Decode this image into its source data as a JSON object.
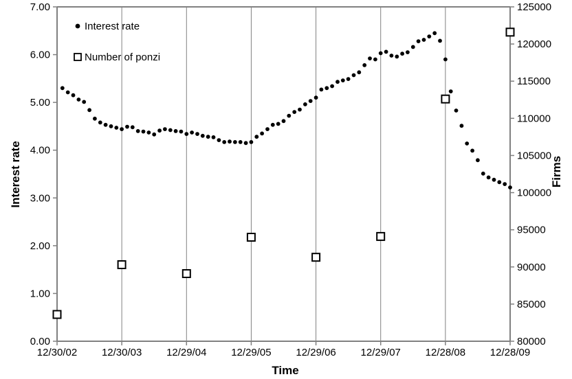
{
  "chart_data": {
    "type": "scatter",
    "title": "",
    "xlabel": "Time",
    "ylabel_left": "Interest rate",
    "ylabel_right": "Firms",
    "x_categories": [
      "12/30/02",
      "12/30/03",
      "12/29/04",
      "12/29/05",
      "12/29/06",
      "12/29/07",
      "12/28/08",
      "12/28/09"
    ],
    "x_range_months": [
      0,
      84
    ],
    "months_per_category": 12,
    "y_left": {
      "min": 0,
      "max": 7,
      "step": 1,
      "tick_labels": [
        "0.00",
        "1.00",
        "2.00",
        "3.00",
        "4.00",
        "5.00",
        "6.00",
        "7.00"
      ]
    },
    "y_right": {
      "min": 80000,
      "max": 125000,
      "step": 5000,
      "tick_labels": [
        "80000",
        "85000",
        "90000",
        "95000",
        "100000",
        "105000",
        "110000",
        "115000",
        "120000",
        "125000"
      ]
    },
    "grid": {
      "vertical": true,
      "horizontal": false
    },
    "legend": {
      "position": "top-left-inside",
      "entries": [
        "Interest rate",
        "Number of ponzi"
      ]
    },
    "series": [
      {
        "name": "Interest rate",
        "axis": "left",
        "marker": "filled-dot",
        "color": "#000000",
        "x_month_start": 1,
        "x_month_step": 1,
        "values": [
          5.3,
          5.21,
          5.15,
          5.06,
          5.01,
          4.84,
          4.66,
          4.58,
          4.53,
          4.5,
          4.47,
          4.44,
          4.49,
          4.48,
          4.4,
          4.39,
          4.37,
          4.33,
          4.41,
          4.44,
          4.42,
          4.4,
          4.39,
          4.34,
          4.37,
          4.34,
          4.3,
          4.28,
          4.27,
          4.21,
          4.17,
          4.18,
          4.17,
          4.17,
          4.15,
          4.17,
          4.28,
          4.35,
          4.44,
          4.53,
          4.55,
          4.61,
          4.72,
          4.8,
          4.85,
          4.96,
          5.03,
          5.1,
          5.27,
          5.3,
          5.34,
          5.43,
          5.46,
          5.49,
          5.57,
          5.63,
          5.78,
          5.92,
          5.9,
          6.03,
          6.06,
          5.98,
          5.96,
          6.02,
          6.05,
          6.16,
          6.28,
          6.31,
          6.38,
          6.45,
          6.29,
          5.9,
          5.23,
          4.83,
          4.51,
          4.14,
          3.99,
          3.79,
          3.51,
          3.43,
          3.38,
          3.33,
          3.29,
          3.22
        ]
      },
      {
        "name": "Number of ponzi",
        "axis": "right",
        "marker": "open-square",
        "color": "#000000",
        "x_months": [
          0,
          12,
          24,
          36,
          48,
          60,
          72,
          84
        ],
        "x_dates": [
          "12/30/02",
          "12/30/03",
          "12/29/04",
          "12/29/05",
          "12/29/06",
          "12/29/07",
          "12/28/08",
          "12/28/09"
        ],
        "values": [
          83600,
          90300,
          89100,
          94000,
          91300,
          94100,
          112600,
          121600
        ]
      }
    ],
    "colors": {
      "background": "#ffffff",
      "axis_line": "#808080",
      "gridline": "#808080",
      "text": "#000000",
      "marker": "#000000"
    }
  }
}
